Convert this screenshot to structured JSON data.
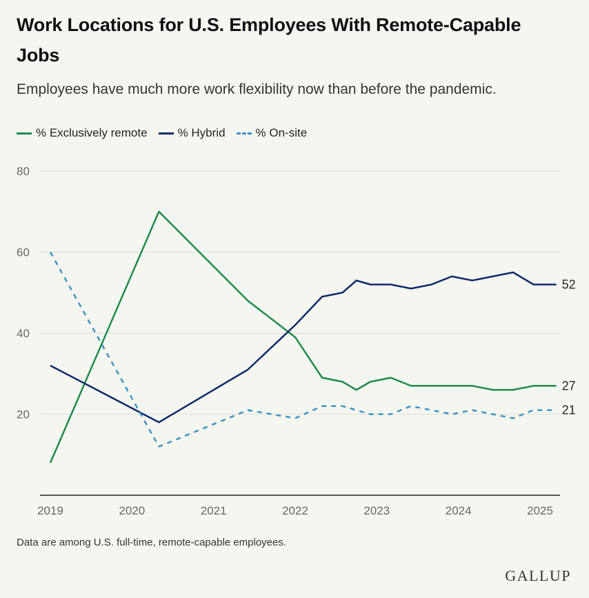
{
  "title": "Work Locations for U.S. Employees With Remote-Capable Jobs",
  "subtitle": "Employees have much more work flexibility now than before the pandemic.",
  "footnote": "Data are among U.S. full-time, remote-capable employees.",
  "logo": "GALLUP",
  "chart_data": {
    "type": "line",
    "title": "Work Locations for U.S. Employees With Remote-Capable Jobs",
    "xlim": [
      2019,
      2025.2
    ],
    "ylim": [
      0,
      80
    ],
    "x_ticks": [
      2019,
      2020,
      2021,
      2022,
      2023,
      2024,
      2025
    ],
    "x_tick_labels": [
      "2019",
      "2020",
      "2021",
      "2022",
      "2023",
      "2024",
      "2025"
    ],
    "y_ticks": [
      20,
      40,
      60,
      80
    ],
    "y_tick_labels": [
      "20",
      "40",
      "60",
      "80"
    ],
    "grid": "horizontal",
    "legend_position": "top-left",
    "series": [
      {
        "name": "% Exclusively remote",
        "color": "#1e8a4c",
        "dash": "solid",
        "end_label": "27",
        "x": [
          2019.0,
          2020.33,
          2021.42,
          2022.0,
          2022.33,
          2022.58,
          2022.75,
          2022.92,
          2023.17,
          2023.42,
          2023.67,
          2023.92,
          2024.17,
          2024.42,
          2024.67,
          2024.92,
          2025.2
        ],
        "y": [
          8,
          70,
          48,
          39,
          29,
          28,
          26,
          28,
          29,
          27,
          27,
          27,
          27,
          26,
          26,
          27,
          27
        ]
      },
      {
        "name": "% Hybrid",
        "color": "#0c2a6b",
        "dash": "solid",
        "end_label": "52",
        "x": [
          2019.0,
          2020.33,
          2021.42,
          2022.0,
          2022.33,
          2022.58,
          2022.75,
          2022.92,
          2023.17,
          2023.42,
          2023.67,
          2023.92,
          2024.17,
          2024.42,
          2024.67,
          2024.92,
          2025.2
        ],
        "y": [
          32,
          18,
          31,
          42,
          49,
          50,
          53,
          52,
          52,
          51,
          52,
          54,
          53,
          54,
          55,
          52,
          52
        ]
      },
      {
        "name": "% On-site",
        "color": "#3a93c6",
        "dash": "dashed",
        "end_label": "21",
        "x": [
          2019.0,
          2020.33,
          2021.42,
          2022.0,
          2022.33,
          2022.58,
          2022.75,
          2022.92,
          2023.17,
          2023.42,
          2023.67,
          2023.92,
          2024.17,
          2024.42,
          2024.67,
          2024.92,
          2025.2
        ],
        "y": [
          60,
          12,
          21,
          19,
          22,
          22,
          21,
          20,
          20,
          22,
          21,
          20,
          21,
          20,
          19,
          21,
          21
        ]
      }
    ]
  }
}
